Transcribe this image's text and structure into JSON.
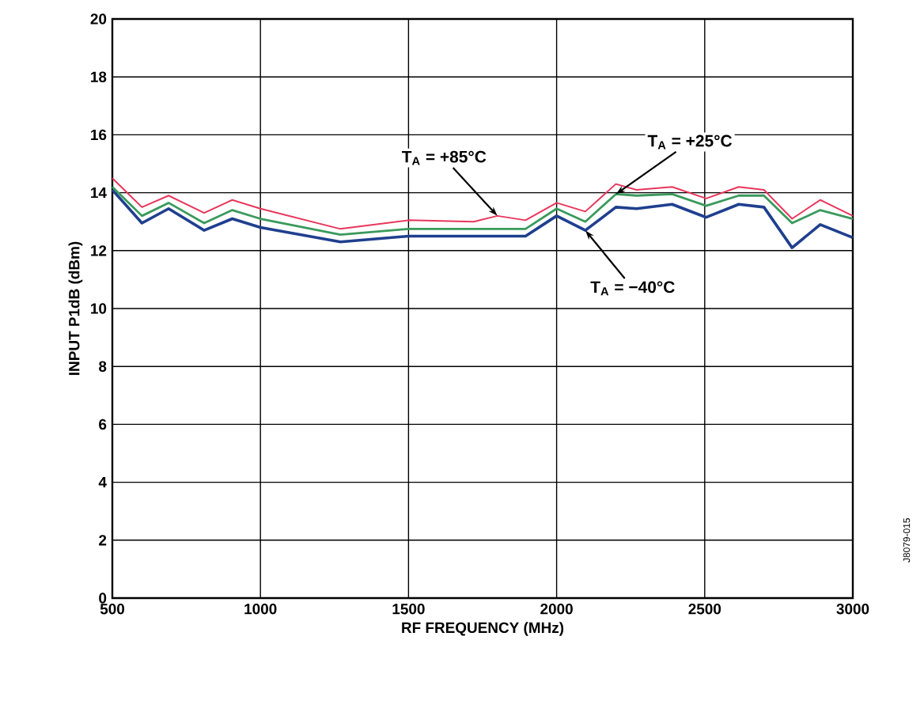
{
  "chart_data": {
    "type": "line",
    "xlabel": "RF FREQUENCY (MHz)",
    "ylabel": "INPUT P1dB (dBm)",
    "xlim": [
      500,
      3000
    ],
    "xticks": [
      500,
      1000,
      1500,
      2000,
      2500,
      3000
    ],
    "ylim": [
      0,
      20
    ],
    "yticks": [
      0,
      2,
      4,
      6,
      8,
      10,
      12,
      14,
      16,
      18,
      20
    ],
    "grid": true,
    "series": [
      {
        "color": "#1f3f8f",
        "x": [
          500,
          600,
          690,
          810,
          905,
          1000,
          1270,
          1500,
          1720,
          1895,
          2000,
          2097,
          2200,
          2270,
          2390,
          2505,
          2615,
          2700,
          2795,
          2890,
          3000
        ],
        "values": [
          14.1,
          12.95,
          13.45,
          12.7,
          13.1,
          12.8,
          12.3,
          12.5,
          12.5,
          12.5,
          13.2,
          12.7,
          13.5,
          13.45,
          13.6,
          13.15,
          13.6,
          13.5,
          12.1,
          12.9,
          12.45
        ]
      },
      {
        "color": "#3a9a5c",
        "x": [
          500,
          600,
          690,
          810,
          905,
          1000,
          1270,
          1500,
          1720,
          1895,
          2000,
          2097,
          2200,
          2270,
          2390,
          2505,
          2615,
          2700,
          2795,
          2890,
          3000
        ],
        "values": [
          14.2,
          13.2,
          13.65,
          12.95,
          13.4,
          13.1,
          12.55,
          12.75,
          12.75,
          12.75,
          13.45,
          13.0,
          13.95,
          13.9,
          13.95,
          13.55,
          13.9,
          13.9,
          12.95,
          13.4,
          13.1
        ]
      },
      {
        "color": "#e8365b",
        "x": [
          500,
          600,
          690,
          810,
          905,
          1000,
          1270,
          1500,
          1720,
          1800,
          1895,
          2000,
          2097,
          2200,
          2270,
          2390,
          2505,
          2615,
          2700,
          2795,
          2890,
          3000
        ],
        "values": [
          14.5,
          13.5,
          13.9,
          13.3,
          13.75,
          13.45,
          12.75,
          13.05,
          13.0,
          13.2,
          13.05,
          13.65,
          13.35,
          14.3,
          14.1,
          14.2,
          13.8,
          14.2,
          14.1,
          13.1,
          13.75,
          13.2
        ]
      }
    ],
    "annotations": [
      {
        "text": "T$_{A}$ = +85°C",
        "x": 1800,
        "y": 13.2
      },
      {
        "text": "T$_{A}$ = +25°C",
        "x": 2200,
        "y": 13.95
      },
      {
        "text": "T$_{A}$ = −40°C",
        "x": 2097,
        "y": 12.7
      },
      "J8079-015"
    ]
  }
}
